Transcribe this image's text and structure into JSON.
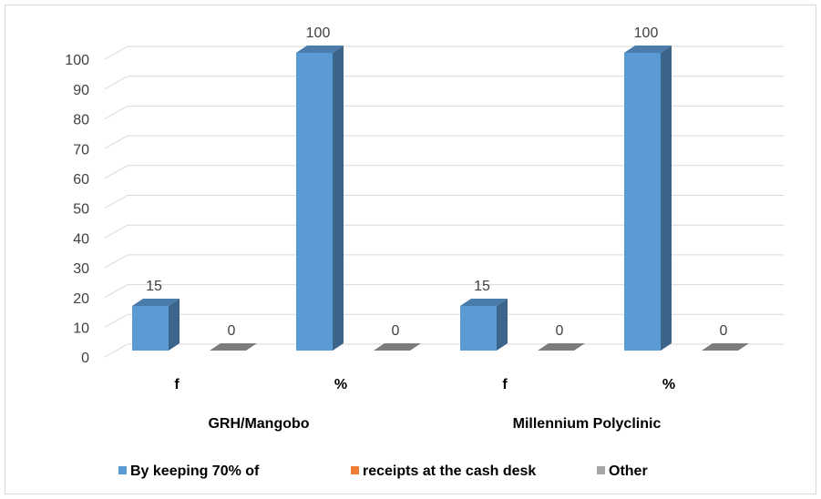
{
  "chart_data": {
    "type": "bar3d",
    "categories": [
      "f",
      "%",
      "f",
      "%"
    ],
    "groups": [
      "GRH/Mangobo",
      "Millennium Polyclinic"
    ],
    "series": [
      {
        "name": "By keeping 70% of",
        "color": "#5b9bd5",
        "values": [
          15,
          100,
          15,
          100
        ]
      },
      {
        "name": "receipts at the cash desk",
        "color": "#ed7d31",
        "values": [
          null,
          null,
          null,
          null
        ]
      },
      {
        "name": "Other",
        "color": "#a5a5a5",
        "values": [
          0,
          0,
          0,
          0
        ]
      }
    ],
    "ylim": [
      0,
      100
    ],
    "yticks": [
      0,
      10,
      20,
      30,
      40,
      50,
      60,
      70,
      80,
      90,
      100
    ],
    "grid": true,
    "legend": "bottom"
  }
}
